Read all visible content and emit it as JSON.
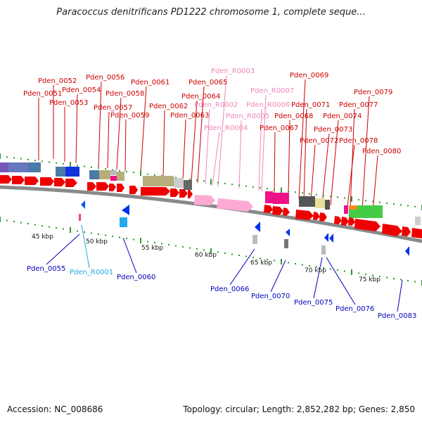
{
  "title": "Paracoccus denitrificans PD1222 chromosome 1, complete seque...",
  "footer": {
    "accession": "Accession: NC_008686",
    "topology": "Topology: circular; Length: 2,852,282 bp; Genes: 2,850"
  },
  "colors": {
    "gene_label": "#cc0000",
    "rna_label_pink": "#ee88bb",
    "rna_label_cyan": "#22aadd",
    "minus_label": "#0000bb",
    "backbone": "#888888",
    "tick": "#2a9a2a"
  },
  "scale_labels": [
    "45 kbp",
    "50 kbp",
    "55 kbp",
    "60 kbp",
    "65 kbp",
    "70 kbp",
    "75 kbp"
  ],
  "top_labels": [
    "Pden_0051",
    "Pden_0052",
    "Pden_0053",
    "Pden_0054",
    "Pden_0056",
    "Pden_0057",
    "Pden_0058",
    "Pden_0059",
    "Pden_0061",
    "Pden_0062",
    "Pden_0063",
    "Pden_0064",
    "Pden_0065",
    "Pden_R0002",
    "Pden_R0003",
    "Pden_R0004",
    "Pden_R0005",
    "Pden_R0006",
    "Pden_R0007",
    "Pden_0067",
    "Pden_0068",
    "Pden_0069",
    "Pden_0071",
    "Pden_0072",
    "Pden_0073",
    "Pden_0074",
    "Pden_0077",
    "Pden_0078",
    "Pden_0079",
    "Pden_0080"
  ],
  "bottom_labels": [
    "Pden_0055",
    "Pden_R0001",
    "Pden_0060",
    "Pden_0066",
    "Pden_0070",
    "Pden_0075",
    "Pden_0076",
    "Pden_0083"
  ]
}
